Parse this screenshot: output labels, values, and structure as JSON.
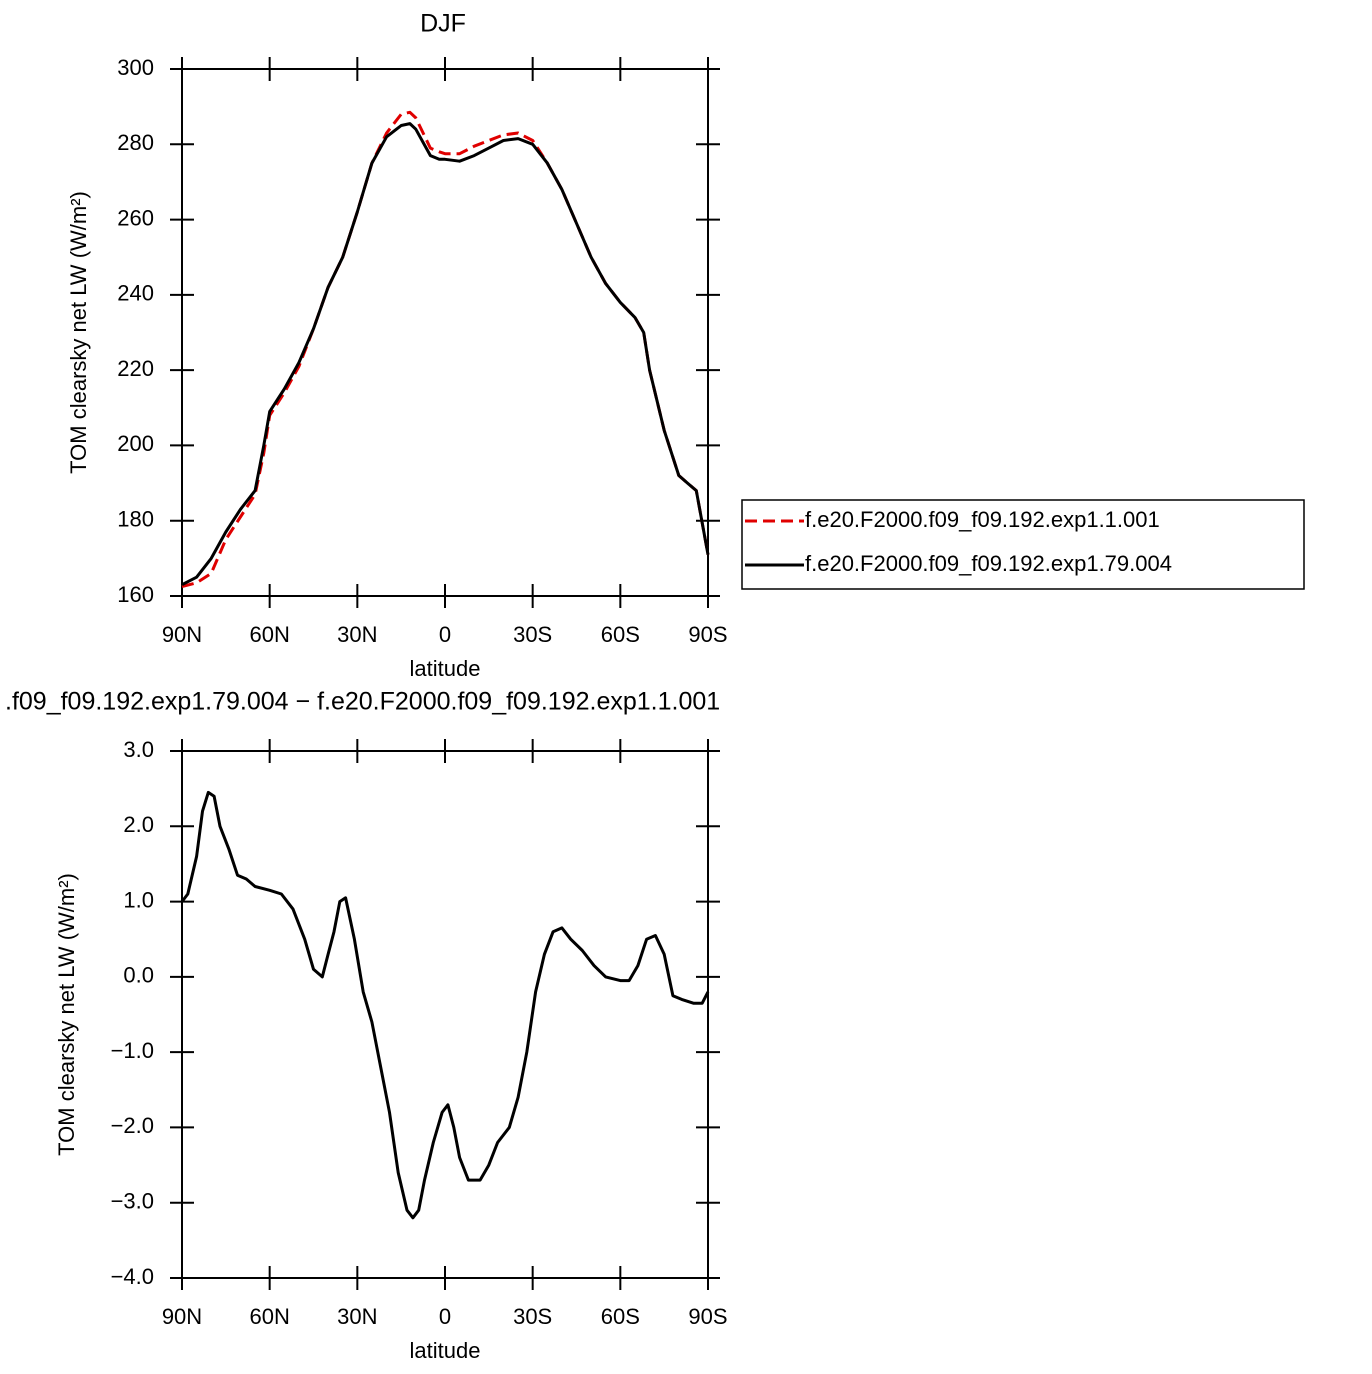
{
  "chart_data": [
    {
      "type": "line",
      "title": "DJF",
      "xlabel": "latitude",
      "ylabel": "TOM clearsky net LW (W/m²)",
      "x": [
        90,
        85,
        80,
        75,
        70,
        65,
        62,
        60,
        55,
        50,
        45,
        40,
        35,
        30,
        25,
        20,
        15,
        12,
        10,
        5,
        2,
        0,
        -5,
        -10,
        -15,
        -20,
        -25,
        -30,
        -35,
        -40,
        -45,
        -50,
        -55,
        -60,
        -65,
        -68,
        -70,
        -75,
        -80,
        -83,
        -86,
        -90
      ],
      "series": [
        {
          "name": "f.e20.F2000.f09_f09.192.exp1.1.001",
          "color": "#e00000",
          "style": "dashed",
          "values": [
            162.5,
            163.5,
            166,
            175,
            181,
            187,
            198,
            208,
            214,
            221,
            231,
            242,
            250,
            262,
            275,
            283,
            288,
            288.5,
            287,
            279,
            278,
            277.5,
            277.5,
            279.5,
            281,
            282.5,
            283,
            281,
            275,
            268,
            259,
            250,
            243,
            238,
            234,
            230,
            220,
            204,
            192,
            190,
            188,
            171
          ]
        },
        {
          "name": "f.e20.F2000.f09_f09.192.exp1.79.004",
          "color": "#000000",
          "style": "solid",
          "values": [
            163,
            165,
            170,
            177,
            183,
            188,
            200,
            209,
            215,
            222,
            231,
            242,
            250,
            262,
            275,
            282,
            285,
            285.5,
            284,
            277,
            276,
            276,
            275.5,
            277,
            279,
            281,
            281.5,
            280,
            275,
            268,
            259,
            250,
            243,
            238,
            234,
            230,
            220,
            204,
            192,
            190,
            188,
            171
          ]
        }
      ],
      "xlim": [
        90,
        -90
      ],
      "xticks": [
        {
          "value": 90,
          "label": "90N"
        },
        {
          "value": 60,
          "label": "60N"
        },
        {
          "value": 30,
          "label": "30N"
        },
        0,
        {
          "value": -30,
          "label": "30S"
        },
        {
          "value": -60,
          "label": "60S"
        },
        {
          "value": -90,
          "label": "90S"
        }
      ],
      "ylim": [
        160,
        300
      ],
      "yticks": [
        160,
        180,
        200,
        220,
        240,
        260,
        280,
        300
      ],
      "legend": "right"
    },
    {
      "type": "line",
      "title": ".f09_f09.192.exp1.79.004 − f.e20.F2000.f09_f09.192.exp1.1.001",
      "xlabel": "latitude",
      "ylabel": "TOM clearsky net LW (W/m²)",
      "x": [
        90,
        88,
        85,
        83,
        81,
        79,
        77,
        74,
        71,
        68,
        65,
        60,
        56,
        52,
        48,
        45,
        42,
        40,
        38,
        36,
        34,
        31,
        28,
        25,
        22,
        19,
        16,
        13,
        11,
        9,
        7,
        4,
        1,
        -1,
        -3,
        -5,
        -8,
        -12,
        -15,
        -18,
        -22,
        -25,
        -28,
        -31,
        -34,
        -37,
        -40,
        -43,
        -47,
        -51,
        -55,
        -60,
        -63,
        -66,
        -69,
        -72,
        -75,
        -78,
        -81,
        -85,
        -88,
        -90
      ],
      "series": [
        {
          "color": "#000000",
          "style": "solid",
          "values": [
            1.0,
            1.1,
            1.6,
            2.2,
            2.45,
            2.4,
            2.0,
            1.7,
            1.35,
            1.3,
            1.2,
            1.15,
            1.1,
            0.9,
            0.5,
            0.1,
            0.0,
            0.3,
            0.6,
            1.0,
            1.05,
            0.5,
            -0.2,
            -0.6,
            -1.2,
            -1.8,
            -2.6,
            -3.1,
            -3.2,
            -3.1,
            -2.7,
            -2.2,
            -1.8,
            -1.7,
            -2.0,
            -2.4,
            -2.7,
            -2.7,
            -2.5,
            -2.2,
            -2.0,
            -1.6,
            -1.0,
            -0.2,
            0.3,
            0.6,
            0.65,
            0.5,
            0.35,
            0.15,
            0.0,
            -0.05,
            -0.05,
            0.15,
            0.5,
            0.55,
            0.3,
            -0.25,
            -0.3,
            -0.35,
            -0.35,
            -0.2
          ]
        }
      ],
      "xlim": [
        90,
        -90
      ],
      "xticks": [
        {
          "value": 90,
          "label": "90N"
        },
        {
          "value": 60,
          "label": "60N"
        },
        {
          "value": 30,
          "label": "30N"
        },
        0,
        {
          "value": -30,
          "label": "30S"
        },
        {
          "value": -60,
          "label": "60S"
        },
        {
          "value": -90,
          "label": "90S"
        }
      ],
      "ylim": [
        -4,
        3
      ],
      "yticks": [
        {
          "value": -4,
          "label": "−4.0"
        },
        {
          "value": -3,
          "label": "−3.0"
        },
        {
          "value": -2,
          "label": "−2.0"
        },
        {
          "value": -1,
          "label": "−1.0"
        },
        {
          "value": 0,
          "label": "0.0"
        },
        {
          "value": 1,
          "label": "1.0"
        },
        {
          "value": 2,
          "label": "2.0"
        },
        {
          "value": 3,
          "label": "3.0"
        }
      ]
    }
  ]
}
